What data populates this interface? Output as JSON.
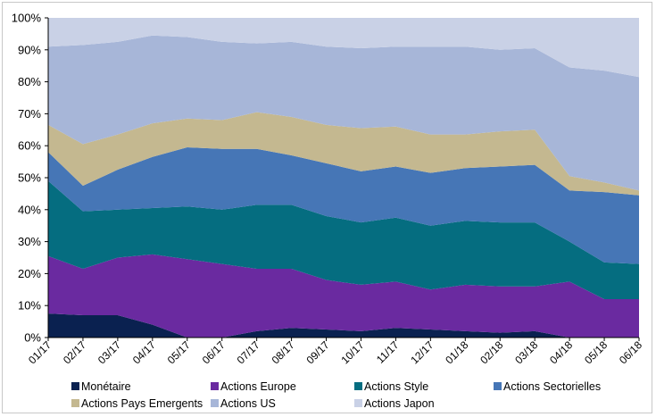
{
  "chart_data": {
    "type": "area",
    "stacked": true,
    "percent_stacked": true,
    "title": "",
    "xlabel": "",
    "ylabel": "",
    "ylim": [
      0,
      100
    ],
    "y_ticks": [
      "0%",
      "10%",
      "20%",
      "30%",
      "40%",
      "50%",
      "60%",
      "70%",
      "80%",
      "90%",
      "100%"
    ],
    "categories": [
      "01/17",
      "02/17",
      "03/17",
      "04/17",
      "05/17",
      "06/17",
      "07/17",
      "08/17",
      "09/17",
      "10/17",
      "11/17",
      "12/17",
      "01/18",
      "02/18",
      "03/18",
      "04/18",
      "05/18",
      "06/18"
    ],
    "grid": false,
    "legend_position": "bottom",
    "series": [
      {
        "name": "Monétaire",
        "color": "#0a2150",
        "values": [
          7.5,
          7.0,
          7.0,
          4.0,
          0.0,
          0.0,
          2.0,
          3.0,
          2.5,
          2.0,
          3.0,
          2.5,
          2.0,
          1.5,
          2.0,
          0.0,
          0.0,
          0.0
        ]
      },
      {
        "name": "Actions Europe",
        "color": "#6a2aa0",
        "values": [
          18.0,
          14.5,
          18.0,
          22.0,
          24.5,
          23.0,
          19.5,
          18.5,
          15.5,
          14.5,
          14.5,
          12.5,
          14.5,
          14.5,
          14.0,
          17.5,
          12.0,
          12.0
        ]
      },
      {
        "name": "Actions Style",
        "color": "#056d80",
        "values": [
          23.5,
          18.0,
          15.0,
          14.5,
          16.5,
          17.0,
          20.0,
          20.0,
          20.0,
          19.5,
          20.0,
          20.0,
          20.0,
          20.0,
          20.0,
          12.5,
          11.5,
          11.0
        ]
      },
      {
        "name": "Actions Sectorielles",
        "color": "#4676b6",
        "values": [
          9.0,
          8.0,
          12.5,
          16.0,
          18.5,
          19.0,
          17.5,
          15.5,
          16.5,
          16.0,
          16.0,
          16.5,
          16.5,
          17.5,
          18.0,
          16.0,
          22.0,
          21.5
        ]
      },
      {
        "name": "Actions Pays Emergents",
        "color": "#c4b890",
        "values": [
          8.5,
          13.0,
          11.0,
          10.5,
          9.0,
          9.0,
          11.5,
          12.0,
          12.0,
          13.5,
          12.5,
          12.0,
          10.5,
          11.0,
          11.0,
          4.5,
          3.0,
          1.5
        ]
      },
      {
        "name": "Actions US",
        "color": "#a7b6d8",
        "values": [
          24.5,
          31.0,
          29.0,
          27.5,
          25.5,
          24.5,
          21.5,
          23.5,
          24.5,
          25.0,
          25.0,
          27.5,
          27.5,
          25.5,
          25.5,
          34.0,
          35.0,
          35.5
        ]
      },
      {
        "name": "Actions Japon",
        "color": "#c9d1e6",
        "values": [
          9.0,
          8.5,
          7.5,
          5.5,
          6.0,
          7.5,
          8.0,
          7.5,
          9.0,
          9.5,
          9.0,
          9.0,
          9.0,
          10.0,
          9.5,
          15.5,
          16.5,
          18.5
        ]
      }
    ]
  }
}
